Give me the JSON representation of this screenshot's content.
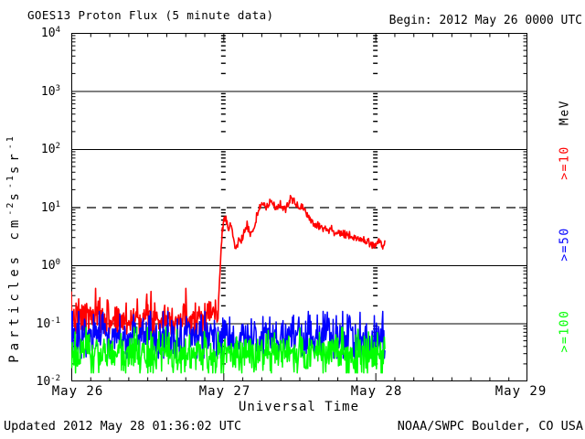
{
  "header": {
    "title": "GOES13 Proton Flux (5 minute data)",
    "begin_label": "Begin: 2012 May 26 0000 UTC"
  },
  "footer": {
    "updated": "Updated 2012 May 28 01:36:02 UTC",
    "source": "NOAA/SWPC Boulder, CO USA"
  },
  "axes": {
    "x_label": "Universal Time",
    "x_ticks": [
      "May 26",
      "May 27",
      "May 28",
      "May 29"
    ],
    "y_ticks_exp": [
      "4",
      "3",
      "2",
      "1",
      "0",
      "-1",
      "-2"
    ],
    "y_label_parts": [
      [
        "t",
        "Particles cm"
      ],
      [
        "s",
        "-2"
      ],
      [
        "t",
        "s"
      ],
      [
        "s",
        "-1"
      ],
      [
        "t",
        "sr"
      ],
      [
        "s",
        "-1"
      ]
    ],
    "threshold_exp": 1
  },
  "legend": {
    "unit": "MeV",
    "entries": [
      {
        "label": ">=10",
        "color": "#ff0000"
      },
      {
        "label": ">=50",
        "color": "#0000ff"
      },
      {
        "label": ">=100",
        "color": "#00ff00"
      }
    ]
  },
  "chart_data": {
    "type": "line",
    "title": "GOES13 Proton Flux (5 minute data)",
    "xlabel": "Universal Time",
    "ylabel": "Particles cm-2 s-1 sr-1",
    "x_unit": "hours since 2012 May 26 0000 UTC",
    "x_range": [
      0,
      72
    ],
    "y_log_range": [
      -2,
      4
    ],
    "y_scale": "log",
    "grid_solid_exps": [
      3,
      2,
      0,
      -1
    ],
    "grid_dashed_exps": [
      1
    ],
    "day_marker_hours": [
      24,
      48
    ],
    "cadence_minutes": 5,
    "data_end_hour": 49.58,
    "series": [
      {
        "name": ">=10 MeV",
        "color": "#ff0000",
        "keypoints": [
          [
            0,
            0.12
          ],
          [
            4,
            0.13
          ],
          [
            8,
            0.11
          ],
          [
            12,
            0.14
          ],
          [
            16,
            0.12
          ],
          [
            20,
            0.13
          ],
          [
            23.2,
            0.16
          ],
          [
            23.5,
            0.9
          ],
          [
            23.8,
            3.5
          ],
          [
            24.1,
            6.2
          ],
          [
            24.4,
            6.8
          ],
          [
            24.8,
            4.2
          ],
          [
            25.2,
            5.0
          ],
          [
            25.9,
            1.9
          ],
          [
            26.4,
            2.5
          ],
          [
            27.1,
            3.1
          ],
          [
            27.7,
            4.9
          ],
          [
            28.3,
            3.4
          ],
          [
            28.9,
            4.0
          ],
          [
            29.6,
            9.5
          ],
          [
            30.2,
            12.0
          ],
          [
            30.8,
            9.2
          ],
          [
            31.5,
            13.0
          ],
          [
            32.2,
            10.0
          ],
          [
            33.0,
            10.5
          ],
          [
            33.8,
            9.2
          ],
          [
            34.6,
            13.8
          ],
          [
            35.2,
            12.2
          ],
          [
            35.8,
            10.0
          ],
          [
            36.4,
            10.6
          ],
          [
            37.0,
            8.2
          ],
          [
            37.7,
            6.2
          ],
          [
            38.5,
            5.1
          ],
          [
            39.5,
            4.6
          ],
          [
            40.5,
            4.2
          ],
          [
            41.5,
            3.8
          ],
          [
            42.5,
            3.5
          ],
          [
            43.5,
            3.2
          ],
          [
            44.5,
            3.0
          ],
          [
            45.5,
            2.8
          ],
          [
            46.5,
            2.6
          ],
          [
            47.3,
            2.4
          ],
          [
            48.0,
            2.2
          ],
          [
            48.6,
            2.6
          ],
          [
            49.1,
            2.1
          ],
          [
            49.58,
            2.5
          ]
        ],
        "noise": [
          {
            "until": 23.3,
            "sd_log": 0.17,
            "clamp": [
              0.065,
              0.4
            ]
          },
          {
            "until": 50,
            "sd_log": 0.035,
            "clamp": [
              0.15,
              18
            ]
          }
        ]
      },
      {
        "name": ">=50 MeV",
        "color": "#0000ff",
        "keypoints": [
          [
            0,
            0.055
          ],
          [
            49.58,
            0.055
          ]
        ],
        "noise": [
          {
            "until": 50,
            "sd_log": 0.22,
            "clamp": [
              0.025,
              0.16
            ]
          }
        ]
      },
      {
        "name": ">=100 MeV",
        "color": "#00ff00",
        "keypoints": [
          [
            0,
            0.03
          ],
          [
            49.58,
            0.03
          ]
        ],
        "noise": [
          {
            "until": 50,
            "sd_log": 0.2,
            "clamp": [
              0.014,
              0.085
            ]
          }
        ]
      }
    ]
  }
}
